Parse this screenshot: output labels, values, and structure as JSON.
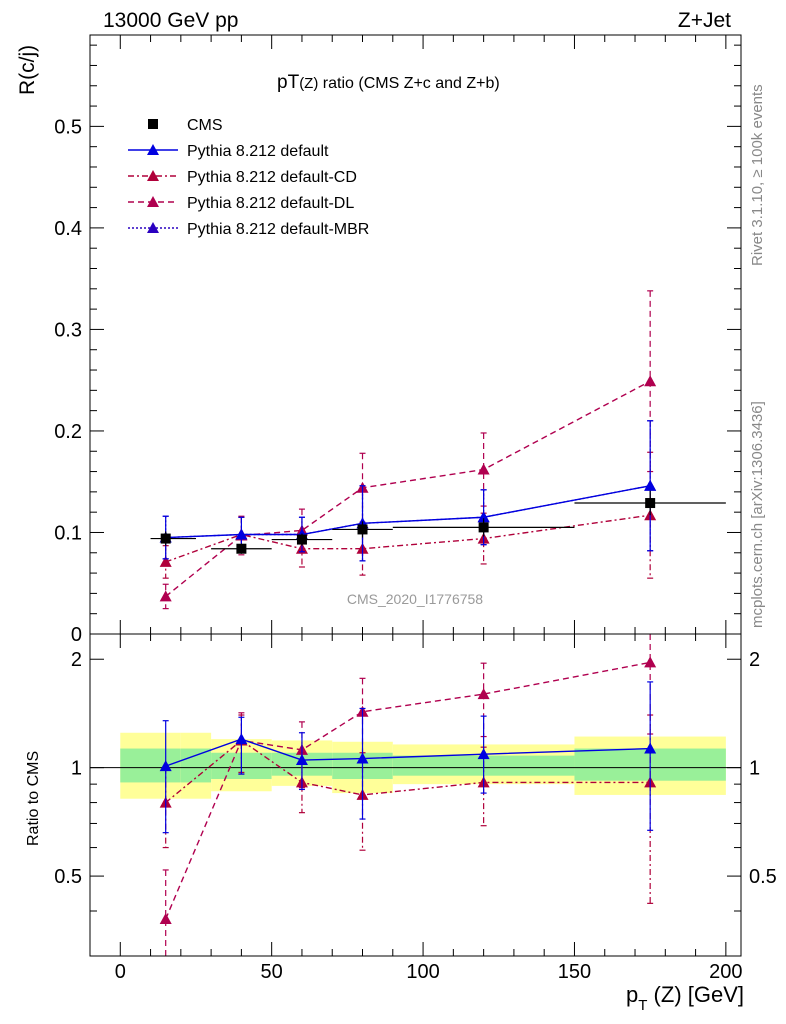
{
  "header": {
    "left": "13000 GeV pp",
    "right": "Z+Jet"
  },
  "side_labels": {
    "rivet": "Rivet 3.1.10, ≥ 100k events",
    "mcplots": "mcplots.cern.ch [arXiv:1306.3436]"
  },
  "chart_data": [
    {
      "type": "scatter",
      "title": "pT(Z) ratio (CMS  Z+c and Z+b)",
      "title_main": "pT",
      "title_sub": "(Z)",
      "title_rest": " ratio (CMS  Z+c and Z+b)",
      "ylabel": "R(c/j)",
      "watermark": "CMS_2020_I1776758",
      "xlim": [
        -10,
        205
      ],
      "ylim": [
        0,
        0.59
      ],
      "yticks": [
        0,
        0.1,
        0.2,
        0.3,
        0.4,
        0.5
      ],
      "ytick_labels": [
        "0",
        "0.1",
        "0.2",
        "0.3",
        "0.4",
        "0.5"
      ],
      "legend_position": "top-left",
      "series": [
        {
          "name": "CMS",
          "color": "#000000",
          "marker": "square",
          "line": "none",
          "x": [
            15,
            40,
            60,
            80,
            120,
            175
          ],
          "y": [
            0.094,
            0.084,
            0.093,
            0.103,
            0.105,
            0.129
          ],
          "yerr": [
            0.007,
            0.005,
            0.006,
            0.008,
            0.009,
            0.012
          ],
          "xerr": [
            [
              5,
              10
            ],
            [
              10,
              10
            ],
            [
              10,
              10
            ],
            [
              10,
              10
            ],
            [
              30,
              30
            ],
            [
              25,
              25
            ]
          ]
        },
        {
          "name": "Pythia 8.212 default",
          "color": "#0000e0",
          "marker": "triangle",
          "line": "solid",
          "x": [
            15,
            40,
            60,
            80,
            120,
            175
          ],
          "y": [
            0.095,
            0.098,
            0.098,
            0.109,
            0.115,
            0.146
          ],
          "yerr": [
            0.021,
            0.017,
            0.017,
            0.037,
            0.027,
            0.064
          ]
        },
        {
          "name": "Pythia 8.212 default-CD",
          "color": "#b0003a",
          "marker": "triangle",
          "line": "dashdot",
          "x": [
            15,
            40,
            60,
            80,
            120,
            175
          ],
          "y": [
            0.071,
            0.098,
            0.084,
            0.084,
            0.094,
            0.117
          ],
          "yerr": [
            0.016,
            0.017,
            0.018,
            0.026,
            0.025,
            0.062
          ]
        },
        {
          "name": "Pythia 8.212 default-DL",
          "color": "#b0004f",
          "marker": "triangle",
          "line": "dashed",
          "x": [
            15,
            40,
            60,
            80,
            120,
            175
          ],
          "y": [
            0.037,
            0.097,
            0.102,
            0.144,
            0.162,
            0.249
          ],
          "yerr": [
            0.012,
            0.019,
            0.021,
            0.034,
            0.036,
            0.089
          ]
        },
        {
          "name": "Pythia 8.212 default-MBR",
          "color": "#2a00c0",
          "marker": "triangle",
          "line": "dotted",
          "x": [
            15,
            40,
            60,
            80,
            120,
            175
          ],
          "y": [
            0.095,
            0.098,
            0.098,
            0.109,
            0.115,
            0.146
          ],
          "yerr": [
            0.021,
            0.017,
            0.017,
            0.037,
            0.027,
            0.064
          ]
        }
      ]
    },
    {
      "type": "scatter",
      "ylabel": "Ratio to CMS",
      "xlabel": "p_T (Z) [GeV]",
      "xlabel_main": "p",
      "xlabel_sub": "T",
      "xlabel_rest": " (Z) [GeV]",
      "xlim": [
        -10,
        205
      ],
      "xticks": [
        0,
        50,
        100,
        150,
        200
      ],
      "xtick_labels": [
        "0",
        "50",
        "100",
        "150",
        "200"
      ],
      "ylim": [
        0.3,
        2.35
      ],
      "yticks": [
        0.5,
        1,
        2
      ],
      "ytick_labels": [
        "0.5",
        "1",
        "2"
      ],
      "bands": {
        "x_edges": [
          [
            0,
            20
          ],
          [
            20,
            30
          ],
          [
            30,
            50
          ],
          [
            50,
            70
          ],
          [
            70,
            90
          ],
          [
            90,
            150
          ],
          [
            150,
            200
          ]
        ],
        "yellow": [
          [
            0.82,
            1.25
          ],
          [
            0.82,
            1.25
          ],
          [
            0.86,
            1.2
          ],
          [
            0.89,
            1.19
          ],
          [
            0.85,
            1.18
          ],
          [
            0.9,
            1.16
          ],
          [
            0.84,
            1.22
          ]
        ],
        "green": [
          [
            0.91,
            1.13
          ],
          [
            0.91,
            1.13
          ],
          [
            0.93,
            1.1
          ],
          [
            0.95,
            1.1
          ],
          [
            0.93,
            1.1
          ],
          [
            0.95,
            1.08
          ],
          [
            0.92,
            1.13
          ]
        ]
      },
      "series": [
        {
          "name": "Pythia 8.212 default",
          "color": "#0000e0",
          "line": "solid",
          "x": [
            15,
            40,
            60,
            80,
            120,
            175
          ],
          "y": [
            1.01,
            1.2,
            1.05,
            1.06,
            1.09,
            1.13
          ],
          "ylo": [
            0.66,
            0.96,
            0.87,
            0.72,
            0.85,
            0.67
          ],
          "yhi": [
            1.35,
            1.38,
            1.25,
            1.46,
            1.39,
            1.73
          ]
        },
        {
          "name": "Pythia 8.212 default-CD",
          "color": "#b0003a",
          "line": "dashdot",
          "x": [
            15,
            40,
            60,
            80,
            120,
            175
          ],
          "y": [
            0.8,
            1.19,
            0.91,
            0.84,
            0.91,
            0.91
          ],
          "ylo": [
            0.6,
            0.97,
            0.75,
            0.59,
            0.69,
            0.42
          ],
          "yhi": [
            1.0,
            1.4,
            1.1,
            1.1,
            1.14,
            1.4
          ]
        },
        {
          "name": "Pythia 8.212 default-DL",
          "color": "#b0004f",
          "line": "dashed",
          "x": [
            15,
            40,
            60,
            80,
            120,
            175
          ],
          "y": [
            0.38,
            1.19,
            1.12,
            1.43,
            1.6,
            1.96
          ],
          "ylo": [
            0.25,
            0.96,
            0.88,
            1.06,
            1.22,
            1.24
          ],
          "yhi": [
            0.52,
            1.42,
            1.34,
            1.77,
            1.95,
            2.65
          ]
        }
      ]
    }
  ]
}
